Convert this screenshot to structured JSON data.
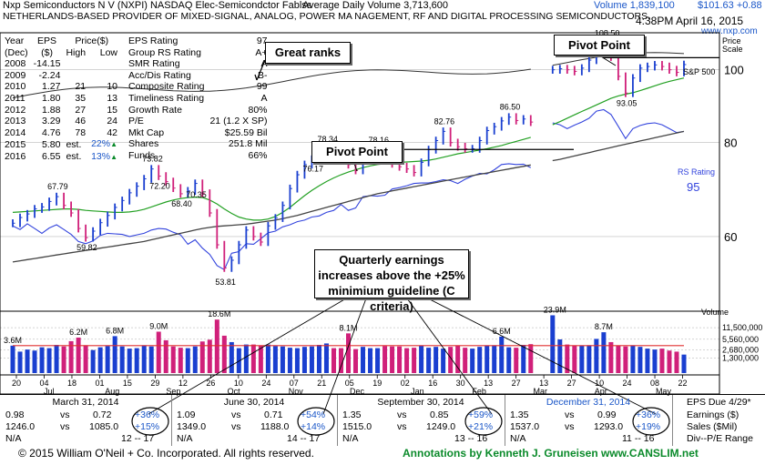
{
  "header": {
    "line1_left": "Nxp Semiconductors N V   (NXPI) NASDAQ Elec-Semicondctor Fablss",
    "line1_mid": "Average Daily Volume 3,713,600",
    "line1_volume": "Volume 1,839,100",
    "line1_price": "$101.63 +0.88",
    "line2": "NETHERLANDS-BASED PROVIDER OF MIXED-SIGNAL, ANALOG, POWER MA NAGEMENT, RF AND DIGITAL PROCESSING SEMICONDUCTORS.",
    "timestamp": "4:38PM April 16, 2015",
    "site": "www.nxp.com",
    "scale_label1": "Price",
    "scale_label2": "Scale"
  },
  "stats": {
    "col_headers": [
      "Year",
      "EPS",
      "Price($)",
      "(Dec)",
      "($)",
      "High",
      "Low"
    ],
    "years": [
      {
        "year": "2008",
        "eps": "-14.15",
        "high": "",
        "low": ""
      },
      {
        "year": "2009",
        "eps": "-2.24",
        "high": "",
        "low": ""
      },
      {
        "year": "2010",
        "eps": "1.27",
        "high": "21",
        "low": "10"
      },
      {
        "year": "2011",
        "eps": "1.80",
        "high": "35",
        "low": "13"
      },
      {
        "year": "2012",
        "eps": "1.88",
        "high": "27",
        "low": "15"
      },
      {
        "year": "2013",
        "eps": "3.29",
        "high": "46",
        "low": "24"
      },
      {
        "year": "2014",
        "eps": "4.76",
        "high": "78",
        "low": "42"
      },
      {
        "year": "2015",
        "eps": "5.80",
        "high": "est.",
        "low": "22%"
      },
      {
        "year": "2016",
        "eps": "6.55",
        "high": "est.",
        "low": "13%"
      }
    ],
    "ratings": [
      {
        "label": "EPS Rating",
        "value": "97"
      },
      {
        "label": "Group RS Rating",
        "value": "A+"
      },
      {
        "label": "SMR Rating",
        "value": "A"
      },
      {
        "label": "Acc/Dis Rating",
        "value": "B-"
      },
      {
        "label": "Composite Rating",
        "value": "99"
      },
      {
        "label": "Timeliness Rating",
        "value": "A"
      },
      {
        "label": "Growth Rate",
        "value": "80%"
      },
      {
        "label": "P/E",
        "value": "21 (1.2 X SP)"
      },
      {
        "label": "Mkt Cap",
        "value": "$25.59 Bil"
      },
      {
        "label": "Shares",
        "value": "251.8 Mil"
      },
      {
        "label": "Funds",
        "value": "66%"
      }
    ]
  },
  "annotations": {
    "great_ranks": "Great ranks",
    "pivot_top": "Pivot Point",
    "pivot_mid": "Pivot Point",
    "quarterly": "Quarterly earnings increases above the +25% minimium guideline (C criteria)"
  },
  "chart_data": {
    "type": "line",
    "title": "",
    "price_axis": {
      "ticks": [
        60,
        80,
        100
      ],
      "ylim": [
        48,
        112
      ],
      "scale": "log"
    },
    "volume_axis": {
      "ticks": [
        "11,500,000",
        "5,560,000",
        "2,680,000",
        "1,300,000"
      ],
      "label": "Volume"
    },
    "x_tick_labels": [
      "20",
      "04",
      "18",
      "01",
      "15",
      "29",
      "12",
      "26",
      "10",
      "24",
      "07",
      "21",
      "05",
      "19",
      "02",
      "16",
      "30",
      "13",
      "27",
      "13",
      "27",
      "10",
      "24",
      "08",
      "22"
    ],
    "month_labels": [
      "Jul",
      "Aug",
      "Sep",
      "Oct",
      "Nov",
      "Dec",
      "Jan",
      "Feb",
      "Mar",
      "Apr",
      "May"
    ],
    "price_labels": [
      "67.79",
      "59.82",
      "73.82",
      "68.40",
      "53.81",
      "78.34",
      "78.16",
      "70.35",
      "82.76",
      "72.20",
      "76.17",
      "86.50",
      "108.50",
      "93.05"
    ],
    "volume_labels": [
      "3.6M",
      "6.2M",
      "6.8M",
      "9.0M",
      "18.6M",
      "8.1M",
      "6.6M",
      "23.9M",
      "8.7M"
    ],
    "sp500_label": "S&P 500",
    "rs_label": "RS Rating",
    "rs_value": "95",
    "price_series": [
      62.5,
      63.6,
      64.3,
      65.3,
      65.7,
      66.8,
      67.8,
      66.0,
      64.5,
      61.5,
      59.8,
      61.0,
      62.6,
      64.0,
      65.6,
      67.0,
      68.6,
      70.0,
      71.6,
      73.8,
      72.2,
      71.0,
      69.6,
      68.4,
      69.0,
      70.6,
      68.5,
      64.5,
      58.5,
      54.5,
      55.8,
      58.5,
      61.2,
      60.0,
      59.0,
      62.0,
      63.5,
      66.0,
      69.5,
      72.5,
      74.8,
      76.0,
      77.5,
      78.3,
      77.5,
      76.5,
      74.8,
      73.5,
      76.0,
      77.2,
      78.2,
      76.5,
      75.0,
      74.3,
      73.8,
      73.0,
      75.3,
      78.3,
      80.5,
      82.8,
      80.0,
      79.0,
      78.5,
      78.5,
      80.5,
      83.0,
      84.0,
      85.5,
      86.5,
      85.6,
      86.0,
      85.2,
      0,
      0,
      100.0,
      100.3,
      100.0,
      99.5,
      100.5,
      103.0,
      105.0,
      108.5,
      104.0,
      98.0,
      93.1,
      97.5,
      100.5,
      101.0,
      101.5,
      101.0,
      100.0,
      99.2,
      101.6
    ],
    "sma50": [
      64.6,
      64.7,
      64.8,
      64.9,
      65.0,
      65.1,
      65.2,
      65.3,
      65.3,
      65.2,
      65.0,
      64.9,
      64.8,
      64.7,
      64.6,
      64.6,
      64.7,
      64.9,
      65.2,
      65.7,
      66.2,
      66.7,
      67.1,
      67.4,
      67.6,
      67.7,
      67.6,
      67.1,
      66.3,
      65.3,
      64.4,
      63.7,
      63.3,
      63.1,
      63.1,
      63.3,
      63.8,
      64.6,
      65.6,
      66.8,
      68.0,
      69.1,
      70.1,
      71.0,
      71.8,
      72.5,
      73.1,
      73.6,
      74.1,
      74.5,
      74.8,
      75.0,
      75.2,
      75.3,
      75.4,
      75.5,
      75.6,
      75.8,
      76.1,
      76.5,
      76.9,
      77.3,
      77.6,
      77.9,
      78.2,
      78.5,
      78.9,
      79.3,
      79.8,
      80.3,
      80.8,
      81.3,
      0,
      0,
      84.5,
      85.3,
      86.2,
      87.1,
      88.0,
      88.9,
      89.8,
      90.7,
      91.6,
      92.3,
      92.8,
      93.2,
      93.8,
      94.5,
      95.2,
      95.9,
      96.5,
      97.0,
      97.5
    ],
    "sma200": [
      55.5,
      55.7,
      55.9,
      56.1,
      56.3,
      56.5,
      56.7,
      56.9,
      57.1,
      57.3,
      57.5,
      57.7,
      57.9,
      58.1,
      58.3,
      58.5,
      58.7,
      58.9,
      59.1,
      59.4,
      59.7,
      60.0,
      60.3,
      60.6,
      60.9,
      61.2,
      61.5,
      61.7,
      61.9,
      62.0,
      62.1,
      62.2,
      62.3,
      62.5,
      62.7,
      62.9,
      63.1,
      63.4,
      63.7,
      64.0,
      64.4,
      64.8,
      65.2,
      65.6,
      66.0,
      66.4,
      66.8,
      67.2,
      67.6,
      68.0,
      68.4,
      68.7,
      69.0,
      69.3,
      69.6,
      69.9,
      70.2,
      70.5,
      70.8,
      71.1,
      71.4,
      71.7,
      72.0,
      72.3,
      72.6,
      72.9,
      73.2,
      73.5,
      73.8,
      74.1,
      74.4,
      74.7,
      0,
      0,
      75.7,
      76.0,
      76.4,
      76.8,
      77.2,
      77.6,
      78.0,
      78.4,
      78.8,
      79.2,
      79.6,
      80.0,
      80.4,
      80.8,
      81.2,
      81.6,
      82.0,
      82.4,
      82.8
    ],
    "rs_line": [
      62.0,
      61.3,
      62.4,
      61.5,
      60.6,
      61.6,
      62.2,
      61.3,
      60.4,
      59.1,
      58.7,
      59.2,
      60.2,
      60.6,
      60.5,
      60.4,
      60.0,
      60.3,
      60.6,
      61.2,
      61.5,
      61.4,
      60.8,
      60.3,
      58.6,
      59.4,
      57.9,
      56.8,
      54.9,
      54.2,
      57.0,
      57.3,
      58.7,
      58.6,
      59.6,
      60.7,
      61.0,
      61.8,
      62.2,
      62.8,
      63.1,
      63.7,
      63.9,
      64.6,
      65.0,
      66.2,
      65.0,
      65.5,
      67.8,
      68.0,
      67.9,
      68.1,
      69.4,
      69.7,
      70.1,
      70.6,
      70.7,
      70.7,
      71.0,
      71.4,
      71.2,
      70.6,
      71.5,
      72.2,
      72.8,
      72.7,
      73.6,
      74.8,
      75.0,
      74.8,
      74.9,
      74.1,
      0,
      0,
      85.0,
      84.5,
      83.5,
      84.4,
      85.2,
      86.2,
      88.1,
      88.5,
      87.2,
      84.1,
      81.0,
      83.5,
      84.3,
      84.8,
      85.0,
      84.5,
      83.5,
      82.5,
      82.8
    ],
    "volumes": [
      3.6,
      2.3,
      2.7,
      2.5,
      3.2,
      3.0,
      3.8,
      3.4,
      4.9,
      6.2,
      3.7,
      2.6,
      3.2,
      3.5,
      6.8,
      3.4,
      2.9,
      3.0,
      3.7,
      3.4,
      9.0,
      5.2,
      3.4,
      3.1,
      3.0,
      3.4,
      4.8,
      5.4,
      18.6,
      7.0,
      4.6,
      3.0,
      3.9,
      3.9,
      3.6,
      3.9,
      3.5,
      3.4,
      3.1,
      3.0,
      3.3,
      3.4,
      3.8,
      4.2,
      3.0,
      3.0,
      8.1,
      2.8,
      3.3,
      3.0,
      3.0,
      3.5,
      3.4,
      3.4,
      3.0,
      3.1,
      3.6,
      3.1,
      3.3,
      2.9,
      3.3,
      3.6,
      3.1,
      2.9,
      3.3,
      3.6,
      3.7,
      6.6,
      3.2,
      3.1,
      3.8,
      4.0,
      0,
      0,
      23.9,
      5.5,
      3.9,
      3.6,
      3.6,
      3.7,
      5.7,
      8.7,
      4.6,
      3.6,
      3.4,
      3.7,
      3.3,
      2.9,
      2.7,
      2.9,
      2.5,
      2.3,
      1.8
    ]
  },
  "earnings": [
    {
      "quarter": "March 31, 2014",
      "eps_cur": "0.98",
      "eps_prev": "0.72",
      "eps_pct": "+36%",
      "sales_cur": "1246.0",
      "sales_prev": "1085.0",
      "sales_pct": "+15%",
      "na": "N/A",
      "range": "12 -- 17"
    },
    {
      "quarter": "June 30, 2014",
      "eps_cur": "1.09",
      "eps_prev": "0.71",
      "eps_pct": "+54%",
      "sales_cur": "1349.0",
      "sales_prev": "1188.0",
      "sales_pct": "+14%",
      "na": "N/A",
      "range": "14 -- 17"
    },
    {
      "quarter": "September 30, 2014",
      "eps_cur": "1.35",
      "eps_prev": "0.85",
      "eps_pct": "+59%",
      "sales_cur": "1515.0",
      "sales_prev": "1249.0",
      "sales_pct": "+21%",
      "na": "N/A",
      "range": "13 -- 16"
    },
    {
      "quarter": "December 31, 2014",
      "eps_cur": "1.35",
      "eps_prev": "0.99",
      "eps_pct": "+36%",
      "sales_cur": "1537.0",
      "sales_prev": "1293.0",
      "sales_pct": "+19%",
      "na": "N/A",
      "range": "11 -- 16"
    }
  ],
  "earnings_right": {
    "due": "EPS Due 4/29*",
    "earnings": "Earnings ($)",
    "sales": "Sales ($Mil)",
    "div": "Div--P/E Range"
  },
  "vs_label": "vs",
  "footer": {
    "copyright": "© 2015  William O'Neil + Co. Incorporated. All rights reserved.",
    "annotations": "Annotations by Kenneth J. Gruneisen www.CANSLIM.net"
  },
  "colors": {
    "up": "#1a3fd0",
    "down": "#d0207a",
    "sma50": "#22a022",
    "sma200": "#444444",
    "rs": "#3344dd",
    "sp500": "#333333",
    "vol_ma": "#e03030",
    "accent": "#1a56c8"
  }
}
